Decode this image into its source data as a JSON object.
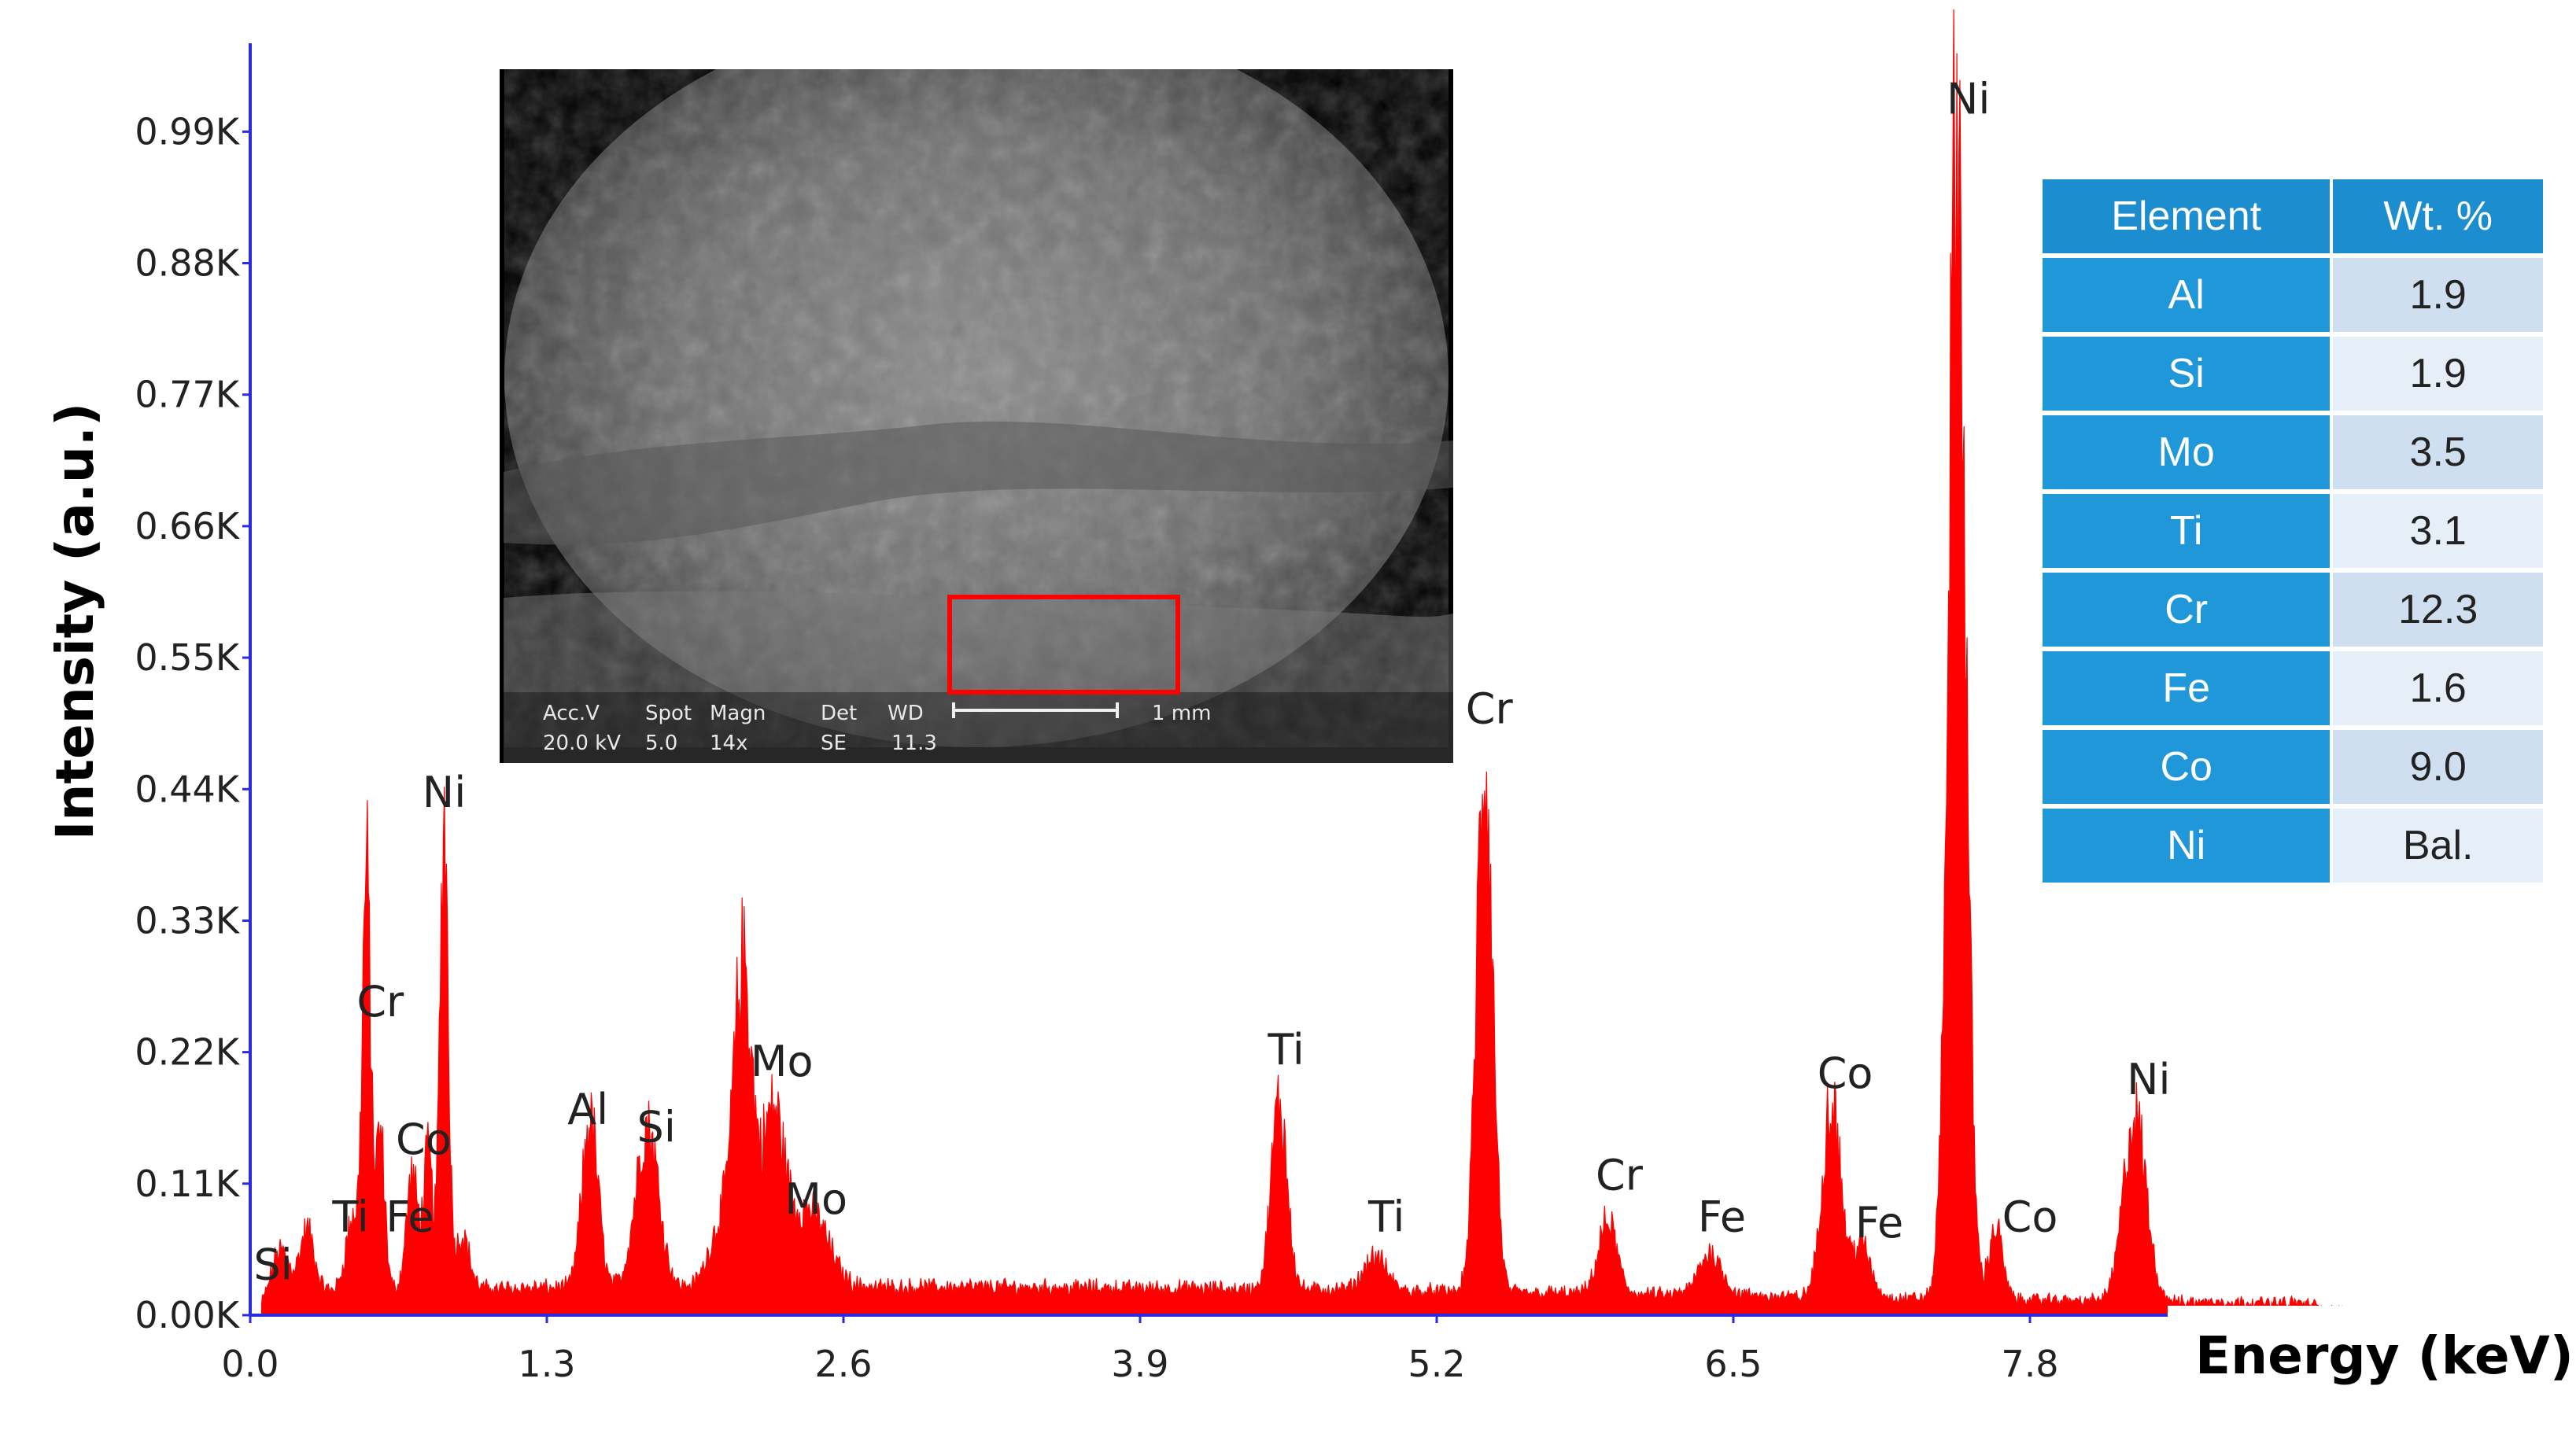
{
  "chart_data": {
    "type": "area",
    "title": "",
    "xlabel": "Energy (keV)",
    "ylabel": "Intensity (a.u.)",
    "xlim": [
      0,
      9.4
    ],
    "ylim": [
      0,
      1060
    ],
    "x_ticks": [
      "0.0",
      "1.3",
      "2.6",
      "3.9",
      "5.2",
      "6.5",
      "7.8"
    ],
    "y_ticks": [
      "0.00K",
      "0.11K",
      "0.22K",
      "0.33K",
      "0.44K",
      "0.55K",
      "0.66K",
      "0.77K",
      "0.88K",
      "0.99K"
    ],
    "color": "#ff0000",
    "background_level": 18,
    "peaks": [
      {
        "x": 0.13,
        "y": 40,
        "w": 0.04
      },
      {
        "x": 0.25,
        "y": 50,
        "w": 0.03
      },
      {
        "x": 0.45,
        "y": 60,
        "w": 0.03
      },
      {
        "x": 0.51,
        "y": 340,
        "w": 0.018
      },
      {
        "x": 0.57,
        "y": 130,
        "w": 0.02
      },
      {
        "x": 0.71,
        "y": 95,
        "w": 0.025
      },
      {
        "x": 0.78,
        "y": 110,
        "w": 0.02
      },
      {
        "x": 0.85,
        "y": 395,
        "w": 0.018
      },
      {
        "x": 0.93,
        "y": 45,
        "w": 0.03
      },
      {
        "x": 1.49,
        "y": 140,
        "w": 0.035
      },
      {
        "x": 1.74,
        "y": 135,
        "w": 0.05
      },
      {
        "x": 2.06,
        "y": 50,
        "w": 0.05
      },
      {
        "x": 2.16,
        "y": 260,
        "w": 0.04
      },
      {
        "x": 2.29,
        "y": 140,
        "w": 0.05
      },
      {
        "x": 2.45,
        "y": 65,
        "w": 0.08
      },
      {
        "x": 4.51,
        "y": 155,
        "w": 0.035
      },
      {
        "x": 4.93,
        "y": 28,
        "w": 0.05
      },
      {
        "x": 5.41,
        "y": 450,
        "w": 0.035
      },
      {
        "x": 5.95,
        "y": 60,
        "w": 0.04
      },
      {
        "x": 6.4,
        "y": 35,
        "w": 0.05
      },
      {
        "x": 6.93,
        "y": 165,
        "w": 0.04
      },
      {
        "x": 7.06,
        "y": 45,
        "w": 0.04
      },
      {
        "x": 7.48,
        "y": 970,
        "w": 0.038
      },
      {
        "x": 7.65,
        "y": 60,
        "w": 0.03
      },
      {
        "x": 8.26,
        "y": 155,
        "w": 0.05
      }
    ],
    "annotations": [
      {
        "text": "Si",
        "x": 0.1,
        "y": 30
      },
      {
        "text": "Ti",
        "x": 0.44,
        "y": 70
      },
      {
        "text": "Fe",
        "x": 0.7,
        "y": 70
      },
      {
        "text": "Cr",
        "x": 0.57,
        "y": 250
      },
      {
        "text": "Co",
        "x": 0.76,
        "y": 135
      },
      {
        "text": "Ni",
        "x": 0.85,
        "y": 425
      },
      {
        "text": "Al",
        "x": 1.48,
        "y": 160
      },
      {
        "text": "Si",
        "x": 1.78,
        "y": 145
      },
      {
        "text": "Mo",
        "x": 2.33,
        "y": 200
      },
      {
        "text": "Mo",
        "x": 2.48,
        "y": 85
      },
      {
        "text": "Ti",
        "x": 4.54,
        "y": 210
      },
      {
        "text": "Ti",
        "x": 4.98,
        "y": 70
      },
      {
        "text": "Cr",
        "x": 5.43,
        "y": 495
      },
      {
        "text": "Cr",
        "x": 6.0,
        "y": 105
      },
      {
        "text": "Fe",
        "x": 6.45,
        "y": 70
      },
      {
        "text": "Co",
        "x": 6.99,
        "y": 190
      },
      {
        "text": "Fe",
        "x": 7.14,
        "y": 65
      },
      {
        "text": "Ni",
        "x": 7.53,
        "y": 1005
      },
      {
        "text": "Co",
        "x": 7.8,
        "y": 70
      },
      {
        "text": "Ni",
        "x": 8.32,
        "y": 185
      }
    ]
  },
  "inset_image": {
    "description": "SEM micrograph",
    "labels": [
      "Acc.V",
      "Spot",
      "Magn",
      "Det",
      "WD",
      "1 mm",
      "20.0 kV",
      "5.0",
      "14x",
      "SE",
      "11.3"
    ]
  },
  "composition_table": {
    "headers": [
      "Element",
      "Wt. %"
    ],
    "rows": [
      {
        "element": "Al",
        "wt": "1.9"
      },
      {
        "element": "Si",
        "wt": "1.9"
      },
      {
        "element": "Mo",
        "wt": "3.5"
      },
      {
        "element": "Ti",
        "wt": "3.1"
      },
      {
        "element": "Cr",
        "wt": "12.3"
      },
      {
        "element": "Fe",
        "wt": "1.6"
      },
      {
        "element": "Co",
        "wt": "9.0"
      },
      {
        "element": "Ni",
        "wt": "Bal."
      }
    ]
  }
}
